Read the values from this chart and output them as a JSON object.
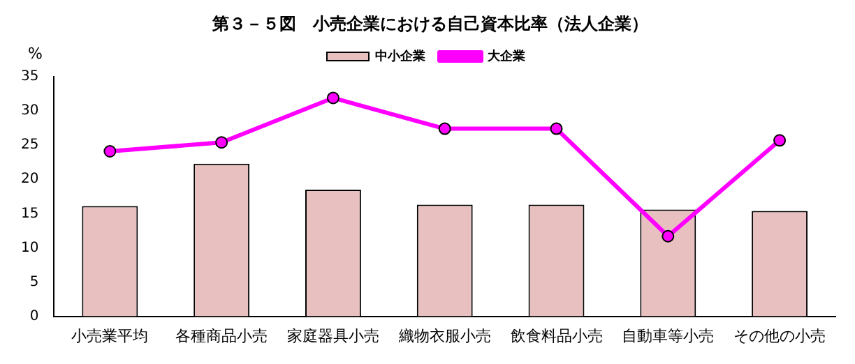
{
  "chart_data": {
    "type": "bar",
    "title": "第３－５図　小売企業における自己資本比率（法人企業）",
    "ylabel": "%",
    "categories": [
      "小売業平均",
      "各種商品小売",
      "家庭器具小売",
      "織物衣服小売",
      "飲食料品小売",
      "自動車等小売",
      "その他の小売"
    ],
    "series": [
      {
        "name": "中小企業",
        "color": "#e8c0c0",
        "values": [
          16.1,
          22.3,
          18.5,
          16.3,
          16.3,
          15.6,
          15.4
        ]
      },
      {
        "name": "大企業",
        "type": "line",
        "color": "#ff00ff",
        "marker": "circle",
        "values": [
          24.1,
          25.4,
          31.9,
          27.4,
          27.4,
          11.7,
          25.7
        ]
      }
    ],
    "ylim": [
      0,
      35
    ],
    "yticks": [
      0,
      5,
      10,
      15,
      20,
      25,
      30,
      35
    ],
    "grid": false,
    "legend": "top"
  }
}
